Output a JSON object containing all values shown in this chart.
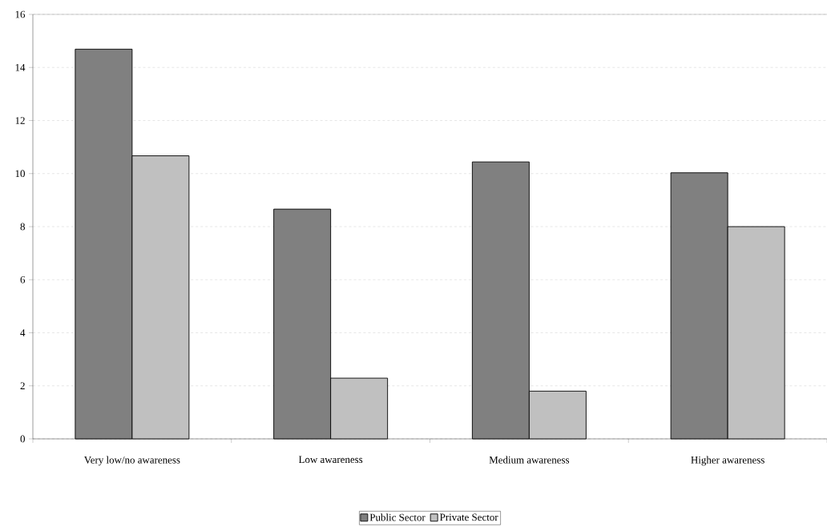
{
  "chart_data": {
    "type": "bar",
    "categories": [
      "Very low/no awareness",
      "Low awareness",
      "Medium awareness",
      "Higher awareness"
    ],
    "series": [
      {
        "name": "Public Sector",
        "color": "#808080",
        "values": [
          14.69,
          8.66,
          10.44,
          10.03
        ]
      },
      {
        "name": "Private Sector",
        "color": "#c0c0c0",
        "values": [
          10.67,
          2.29,
          1.8,
          8.0
        ]
      }
    ],
    "ylim": [
      0,
      16
    ],
    "yticks": [
      0,
      2,
      4,
      6,
      8,
      10,
      12,
      14,
      16
    ],
    "grid": "y",
    "legend": "bottom"
  }
}
